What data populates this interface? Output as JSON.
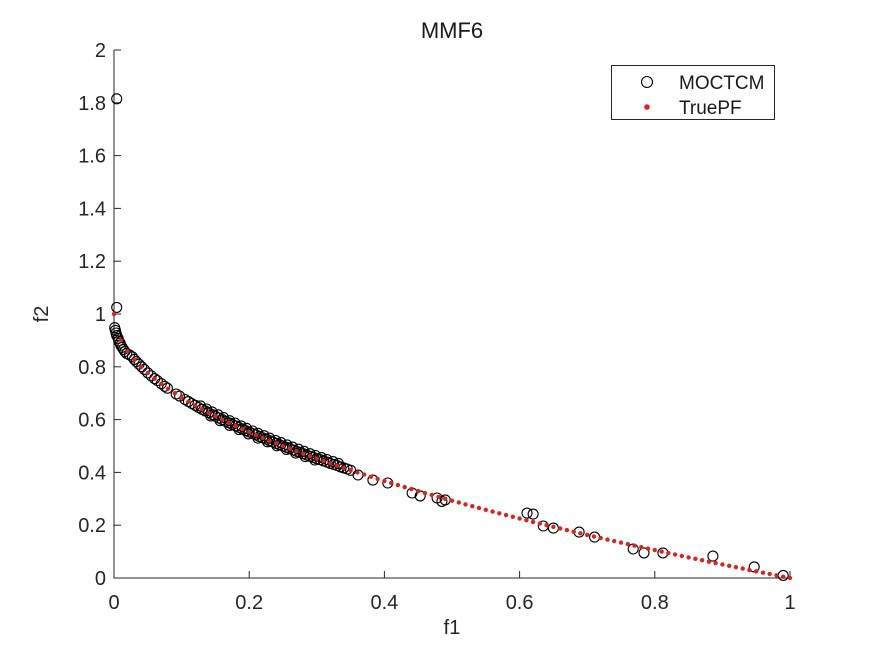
{
  "chart_data": {
    "type": "scatter",
    "title": "MMF6",
    "xlabel": "f1",
    "ylabel": "f2",
    "xlim": [
      0,
      1
    ],
    "ylim": [
      0,
      2
    ],
    "grid": false,
    "legend_position": "northeast",
    "axis_color": "#262626",
    "x_tick_values": [
      0,
      0.2,
      0.4,
      0.6,
      0.8,
      1
    ],
    "x_tick_labels": [
      "0",
      "0.2",
      "0.4",
      "0.6",
      "0.8",
      "1"
    ],
    "y_tick_values": [
      0,
      0.2,
      0.4,
      0.6,
      0.8,
      1,
      1.2,
      1.4,
      1.6,
      1.8,
      2
    ],
    "y_tick_labels": [
      "0",
      "0.2",
      "0.4",
      "0.6",
      "0.8",
      "1",
      "1.2",
      "1.4",
      "1.6",
      "1.8",
      "2"
    ],
    "series": [
      {
        "name": "MOCTCM",
        "marker": "open-circle",
        "color": "#000000",
        "points": [
          [
            0.004,
            1.815
          ],
          [
            0.004,
            1.025
          ],
          [
            0.001,
            0.948
          ],
          [
            0.002,
            0.938
          ],
          [
            0.003,
            0.928
          ],
          [
            0.004,
            0.918
          ],
          [
            0.006,
            0.908
          ],
          [
            0.007,
            0.898
          ],
          [
            0.009,
            0.89
          ],
          [
            0.01,
            0.882
          ],
          [
            0.012,
            0.874
          ],
          [
            0.014,
            0.866
          ],
          [
            0.016,
            0.858
          ],
          [
            0.019,
            0.85
          ],
          [
            0.023,
            0.845
          ],
          [
            0.027,
            0.838
          ],
          [
            0.03,
            0.828
          ],
          [
            0.033,
            0.82
          ],
          [
            0.037,
            0.81
          ],
          [
            0.041,
            0.8
          ],
          [
            0.045,
            0.79
          ],
          [
            0.05,
            0.777
          ],
          [
            0.055,
            0.766
          ],
          [
            0.06,
            0.755
          ],
          [
            0.064,
            0.748
          ],
          [
            0.07,
            0.736
          ],
          [
            0.075,
            0.726
          ],
          [
            0.079,
            0.719
          ],
          [
            0.092,
            0.697
          ],
          [
            0.097,
            0.689
          ],
          [
            0.105,
            0.676
          ],
          [
            0.11,
            0.668
          ],
          [
            0.115,
            0.661
          ],
          [
            0.12,
            0.654
          ],
          [
            0.125,
            0.646
          ],
          [
            0.13,
            0.639
          ],
          [
            0.135,
            0.633
          ],
          [
            0.14,
            0.626
          ],
          [
            0.145,
            0.619
          ],
          [
            0.15,
            0.613
          ],
          [
            0.155,
            0.606
          ],
          [
            0.16,
            0.6
          ],
          [
            0.165,
            0.594
          ],
          [
            0.17,
            0.588
          ],
          [
            0.175,
            0.582
          ],
          [
            0.18,
            0.576
          ],
          [
            0.185,
            0.57
          ],
          [
            0.19,
            0.564
          ],
          [
            0.195,
            0.558
          ],
          [
            0.2,
            0.553
          ],
          [
            0.205,
            0.547
          ],
          [
            0.21,
            0.542
          ],
          [
            0.215,
            0.536
          ],
          [
            0.22,
            0.531
          ],
          [
            0.225,
            0.526
          ],
          [
            0.23,
            0.52
          ],
          [
            0.235,
            0.515
          ],
          [
            0.24,
            0.51
          ],
          [
            0.245,
            0.505
          ],
          [
            0.25,
            0.5
          ],
          [
            0.255,
            0.495
          ],
          [
            0.26,
            0.49
          ],
          [
            0.265,
            0.485
          ],
          [
            0.27,
            0.48
          ],
          [
            0.275,
            0.476
          ],
          [
            0.28,
            0.471
          ],
          [
            0.285,
            0.466
          ],
          [
            0.29,
            0.461
          ],
          [
            0.295,
            0.457
          ],
          [
            0.3,
            0.452
          ],
          [
            0.305,
            0.448
          ],
          [
            0.31,
            0.443
          ],
          [
            0.315,
            0.439
          ],
          [
            0.32,
            0.434
          ],
          [
            0.325,
            0.43
          ],
          [
            0.33,
            0.426
          ],
          [
            0.335,
            0.421
          ],
          [
            0.34,
            0.417
          ],
          [
            0.345,
            0.413
          ],
          [
            0.35,
            0.408
          ],
          [
            0.128,
            0.652
          ],
          [
            0.137,
            0.64
          ],
          [
            0.145,
            0.629
          ],
          [
            0.154,
            0.618
          ],
          [
            0.162,
            0.608
          ],
          [
            0.171,
            0.596
          ],
          [
            0.179,
            0.587
          ],
          [
            0.188,
            0.576
          ],
          [
            0.196,
            0.567
          ],
          [
            0.205,
            0.557
          ],
          [
            0.213,
            0.548
          ],
          [
            0.222,
            0.539
          ],
          [
            0.23,
            0.53
          ],
          [
            0.239,
            0.521
          ],
          [
            0.247,
            0.513
          ],
          [
            0.256,
            0.504
          ],
          [
            0.264,
            0.496
          ],
          [
            0.273,
            0.488
          ],
          [
            0.281,
            0.48
          ],
          [
            0.29,
            0.471
          ],
          [
            0.298,
            0.464
          ],
          [
            0.307,
            0.456
          ],
          [
            0.315,
            0.449
          ],
          [
            0.324,
            0.441
          ],
          [
            0.332,
            0.434
          ],
          [
            0.143,
            0.614
          ],
          [
            0.157,
            0.596
          ],
          [
            0.171,
            0.578
          ],
          [
            0.185,
            0.562
          ],
          [
            0.199,
            0.546
          ],
          [
            0.213,
            0.53
          ],
          [
            0.227,
            0.516
          ],
          [
            0.241,
            0.501
          ],
          [
            0.255,
            0.487
          ],
          [
            0.269,
            0.473
          ],
          [
            0.283,
            0.46
          ],
          [
            0.297,
            0.447
          ],
          [
            0.361,
            0.39
          ],
          [
            0.383,
            0.371
          ],
          [
            0.405,
            0.36
          ],
          [
            0.441,
            0.322
          ],
          [
            0.453,
            0.311
          ],
          [
            0.478,
            0.303
          ],
          [
            0.485,
            0.29
          ],
          [
            0.49,
            0.296
          ],
          [
            0.611,
            0.246
          ],
          [
            0.62,
            0.242
          ],
          [
            0.635,
            0.197
          ],
          [
            0.65,
            0.189
          ],
          [
            0.688,
            0.174
          ],
          [
            0.711,
            0.155
          ],
          [
            0.768,
            0.11
          ],
          [
            0.784,
            0.095
          ],
          [
            0.812,
            0.095
          ],
          [
            0.886,
            0.083
          ],
          [
            0.947,
            0.042
          ],
          [
            0.99,
            0.01
          ]
        ]
      },
      {
        "name": "TruePF",
        "marker": "dot",
        "color": "#da2420",
        "curve": "f2 = 1 - sqrt(f1)",
        "f1_start": 0,
        "f1_step": 0.01,
        "f1_end": 1
      }
    ]
  }
}
